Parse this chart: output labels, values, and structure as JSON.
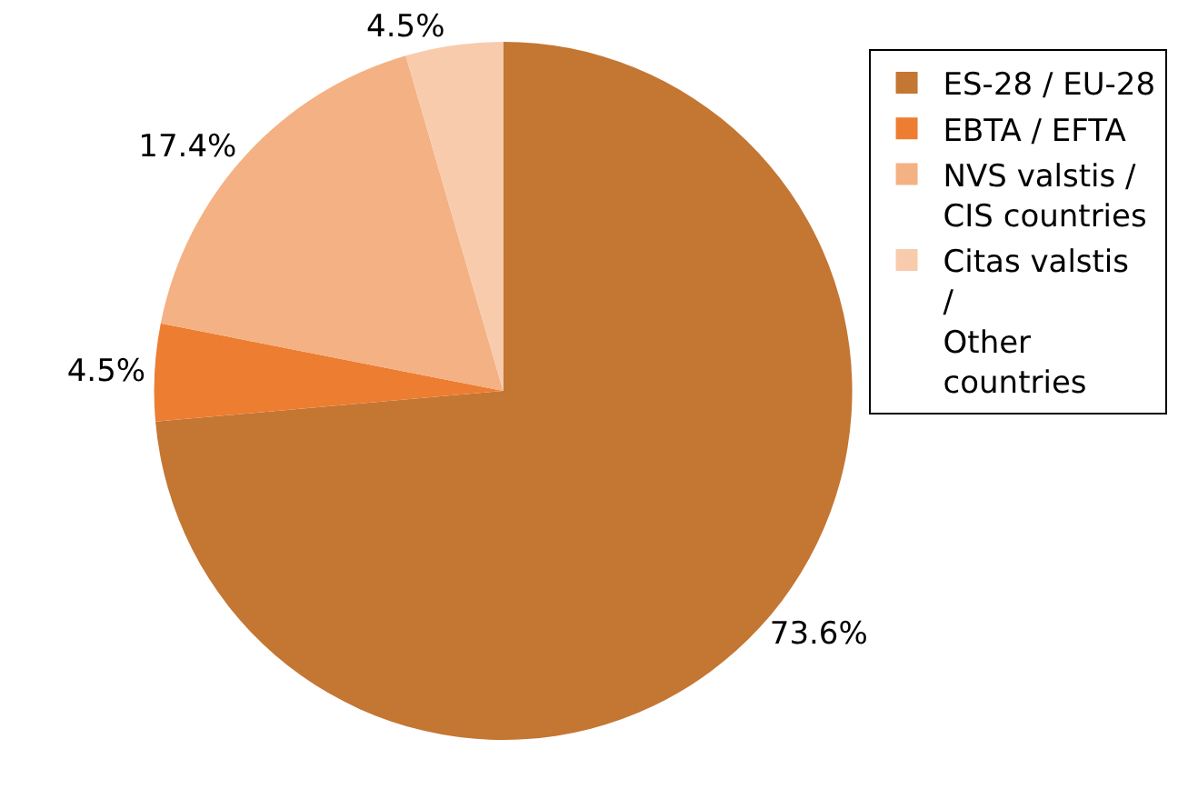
{
  "chart_data": {
    "type": "pie",
    "categories": [
      "ES-28 / EU-28",
      "EBTA / EFTA",
      "NVS valstis / CIS countries",
      "Citas valstis / Other countries"
    ],
    "values": [
      73.6,
      4.5,
      17.4,
      4.5
    ],
    "value_labels": [
      "73.6%",
      "4.5%",
      "17.4%",
      "4.5%"
    ],
    "colors": [
      "#c47633",
      "#ed7d31",
      "#f4b183",
      "#f8cbad"
    ],
    "legend": "right"
  }
}
